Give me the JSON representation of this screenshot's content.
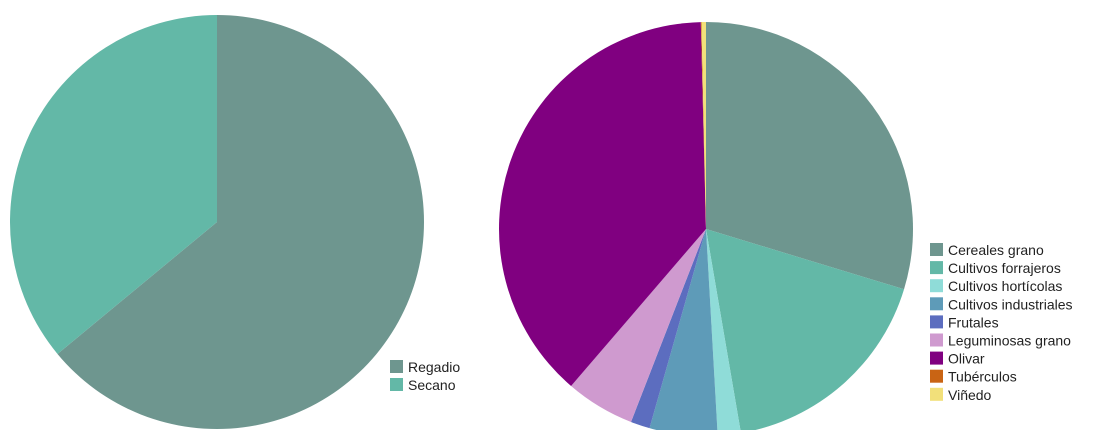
{
  "chart_data": [
    {
      "type": "pie",
      "title": "",
      "legend": "bottom-right",
      "categories": [
        "Regadio",
        "Secano"
      ],
      "values": [
        64,
        36
      ],
      "colors": [
        "#6e968f",
        "#63b8a7"
      ]
    },
    {
      "type": "pie",
      "title": "",
      "legend": "right",
      "categories": [
        "Cereales grano",
        "Cultivos forrajeros",
        "Cultivos hortícolas",
        "Cultivos industriales",
        "Frutales",
        "Leguminosas grano",
        "Olivar",
        "Tubérculos",
        "Viñedo"
      ],
      "values": [
        29.7,
        17.6,
        1.8,
        5.3,
        1.5,
        5.4,
        38.3,
        0.05,
        0.35
      ],
      "colors": [
        "#6e968f",
        "#63b8a7",
        "#8fdcd8",
        "#5e9bb8",
        "#5c6dbf",
        "#cf9acf",
        "#800080",
        "#c96414",
        "#f2e07a"
      ]
    }
  ]
}
